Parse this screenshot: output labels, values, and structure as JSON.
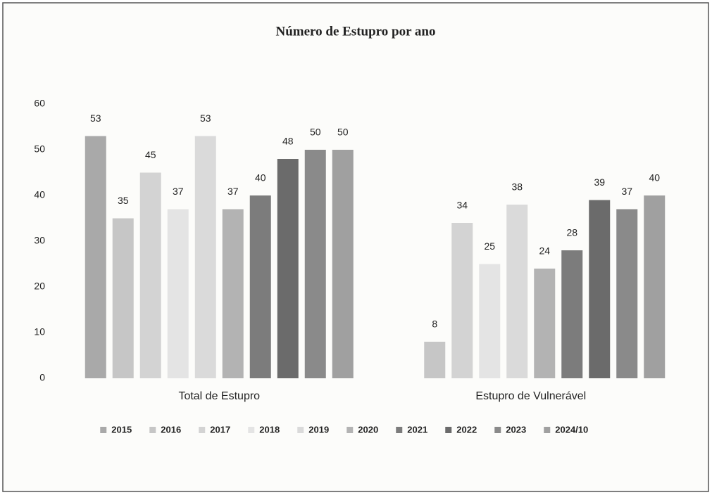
{
  "chart_data": {
    "type": "bar",
    "title": "Número de Estupro por ano",
    "categories": [
      "Total de Estupro",
      "Estupro de Vulnerável"
    ],
    "series": [
      {
        "name": "2015",
        "color": "#a9a9a9",
        "values": [
          53,
          null
        ]
      },
      {
        "name": "2016",
        "color": "#c6c6c6",
        "values": [
          35,
          8
        ]
      },
      {
        "name": "2017",
        "color": "#d3d3d3",
        "values": [
          45,
          34
        ]
      },
      {
        "name": "2018",
        "color": "#e4e4e4",
        "values": [
          37,
          25
        ]
      },
      {
        "name": "2019",
        "color": "#dadada",
        "values": [
          53,
          38
        ]
      },
      {
        "name": "2020",
        "color": "#b3b3b3",
        "values": [
          37,
          24
        ]
      },
      {
        "name": "2021",
        "color": "#7c7c7c",
        "values": [
          40,
          28
        ]
      },
      {
        "name": "2022",
        "color": "#6b6b6b",
        "values": [
          48,
          39
        ]
      },
      {
        "name": "2023",
        "color": "#8a8a8a",
        "values": [
          50,
          37
        ]
      },
      {
        "name": "2024/10",
        "color": "#a0a0a0",
        "values": [
          50,
          40
        ]
      }
    ],
    "ylim": [
      0,
      60
    ],
    "yticks": [
      0,
      10,
      20,
      30,
      40,
      50,
      60
    ],
    "grid": false,
    "legend": "bottom"
  }
}
